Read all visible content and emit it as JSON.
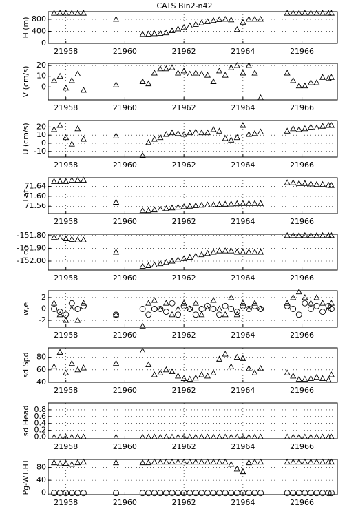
{
  "title": "CATS Bin2-n42",
  "chart_data": [
    {
      "type": "scatter",
      "ylabel": "H (m)",
      "xlim": [
        21957.4,
        21967.2
      ],
      "xticks": [
        21958,
        21960,
        21962,
        21964,
        21966
      ],
      "ylim": [
        0,
        1050
      ],
      "yticks": [
        0,
        400,
        800
      ],
      "grid": true,
      "x": [
        21957.6,
        21957.8,
        21958.0,
        21958.2,
        21958.4,
        21958.6,
        21959.7,
        21960.6,
        21960.8,
        21961.0,
        21961.2,
        21961.4,
        21961.6,
        21961.8,
        21962.0,
        21962.2,
        21962.4,
        21962.6,
        21962.8,
        21963.0,
        21963.2,
        21963.4,
        21963.6,
        21963.8,
        21964.0,
        21964.2,
        21964.4,
        21964.6,
        21965.5,
        21965.7,
        21965.9,
        21966.1,
        21966.3,
        21966.5,
        21966.7,
        21966.9,
        21967.0
      ],
      "series": [
        {
          "marker": "triangle",
          "color": "#000000",
          "values": [
            1000,
            1000,
            1000,
            1000,
            1000,
            1000,
            800,
            300,
            310,
            320,
            330,
            350,
            420,
            480,
            530,
            580,
            630,
            680,
            720,
            760,
            790,
            800,
            780,
            460,
            700,
            800,
            800,
            800,
            1000,
            1000,
            1000,
            1000,
            1000,
            1000,
            1000,
            1000,
            1000
          ]
        }
      ]
    },
    {
      "type": "scatter",
      "ylabel": "V (cm/s)",
      "xlim": [
        21957.4,
        21967.2
      ],
      "xticks": [
        21958,
        21960,
        21962,
        21964,
        21966
      ],
      "ylim": [
        -12,
        22
      ],
      "yticks": [
        0,
        10,
        20
      ],
      "grid": true,
      "x": [
        21957.6,
        21957.8,
        21958.0,
        21958.2,
        21958.4,
        21958.6,
        21959.7,
        21960.6,
        21960.8,
        21961.0,
        21961.2,
        21961.4,
        21961.6,
        21961.8,
        21962.0,
        21962.2,
        21962.4,
        21962.6,
        21962.8,
        21963.0,
        21963.2,
        21963.4,
        21963.6,
        21963.8,
        21964.0,
        21964.2,
        21964.4,
        21964.6,
        21965.5,
        21965.7,
        21965.9,
        21966.1,
        21966.3,
        21966.5,
        21966.7,
        21966.9,
        21967.0
      ],
      "series": [
        {
          "marker": "triangle",
          "color": "#000000",
          "values": [
            6,
            10,
            -1,
            6,
            12,
            -3,
            2,
            5,
            3,
            13,
            17,
            17,
            18,
            13,
            15,
            12,
            13,
            12,
            11,
            5,
            15,
            11,
            18,
            20,
            13,
            20,
            13,
            -10,
            13,
            6,
            1,
            1,
            4,
            4,
            9,
            8,
            9
          ]
        }
      ]
    },
    {
      "type": "scatter",
      "ylabel": "U (cm/s)",
      "xlim": [
        21957.4,
        21967.2
      ],
      "xticks": [
        21958,
        21960,
        21962,
        21964,
        21966
      ],
      "ylim": [
        -17,
        28
      ],
      "yticks": [
        -10,
        0,
        10,
        20
      ],
      "grid": true,
      "x": [
        21957.6,
        21957.8,
        21958.0,
        21958.2,
        21958.4,
        21958.6,
        21959.7,
        21960.6,
        21960.8,
        21961.0,
        21961.2,
        21961.4,
        21961.6,
        21961.8,
        21962.0,
        21962.2,
        21962.4,
        21962.6,
        21962.8,
        21963.0,
        21963.2,
        21963.4,
        21963.6,
        21963.8,
        21964.0,
        21964.2,
        21964.4,
        21964.6,
        21965.5,
        21965.7,
        21965.9,
        21966.1,
        21966.3,
        21966.5,
        21966.7,
        21966.9,
        21967.0
      ],
      "series": [
        {
          "marker": "triangle",
          "color": "#000000",
          "values": [
            17,
            22,
            7,
            -1,
            18,
            5,
            9,
            -15,
            1,
            5,
            7,
            11,
            13,
            12,
            11,
            13,
            14,
            13,
            13,
            17,
            15,
            6,
            4,
            7,
            22,
            11,
            12,
            14,
            15,
            18,
            17,
            18,
            20,
            19,
            21,
            22,
            22
          ]
        }
      ]
    },
    {
      "type": "scatter",
      "ylabel": "Lat",
      "xlim": [
        21957.4,
        21967.2
      ],
      "xticks": [
        21958,
        21960,
        21962,
        21964,
        21966
      ],
      "ylim": [
        71.53,
        71.675
      ],
      "yticks": [
        71.56,
        {
          "value": 71.6,
          "label": "71.60"
        },
        71.64
      ],
      "grid": true,
      "x": [
        21957.6,
        21957.8,
        21958.0,
        21958.2,
        21958.4,
        21958.6,
        21959.7,
        21960.6,
        21960.8,
        21961.0,
        21961.2,
        21961.4,
        21961.6,
        21961.8,
        21962.0,
        21962.2,
        21962.4,
        21962.6,
        21962.8,
        21963.0,
        21963.2,
        21963.4,
        21963.6,
        21963.8,
        21964.0,
        21964.2,
        21964.4,
        21964.6,
        21965.5,
        21965.7,
        21965.9,
        21966.1,
        21966.3,
        21966.5,
        21966.7,
        21966.9,
        21967.0
      ],
      "series": [
        {
          "marker": "triangle",
          "color": "#000000",
          "values": [
            71.66,
            71.66,
            71.66,
            71.665,
            71.665,
            71.665,
            71.576,
            71.542,
            71.542,
            71.545,
            71.548,
            71.55,
            71.553,
            71.556,
            71.558,
            71.56,
            71.562,
            71.564,
            71.565,
            71.566,
            71.567,
            71.568,
            71.569,
            71.57,
            71.571,
            71.571,
            71.571,
            71.571,
            71.655,
            71.655,
            71.652,
            71.652,
            71.65,
            71.648,
            71.648,
            71.645,
            71.644
          ]
        }
      ]
    },
    {
      "type": "scatter",
      "ylabel": "Lon",
      "xlim": [
        21957.4,
        21967.2
      ],
      "xticks": [
        21958,
        21960,
        21962,
        21964,
        21966
      ],
      "ylim": [
        -152.07,
        -151.79
      ],
      "yticks": [
        {
          "value": -152.0,
          "label": "-152.00"
        },
        {
          "value": -151.9,
          "label": "-151.90"
        },
        {
          "value": -151.8,
          "label": "-151.80"
        }
      ],
      "grid": true,
      "x": [
        21957.6,
        21957.8,
        21958.0,
        21958.2,
        21958.4,
        21958.6,
        21959.7,
        21960.6,
        21960.8,
        21961.0,
        21961.2,
        21961.4,
        21961.6,
        21961.8,
        21962.0,
        21962.2,
        21962.4,
        21962.6,
        21962.8,
        21963.0,
        21963.2,
        21963.4,
        21963.6,
        21963.8,
        21964.0,
        21964.2,
        21964.4,
        21964.6,
        21965.5,
        21965.7,
        21965.9,
        21966.1,
        21966.3,
        21966.5,
        21966.7,
        21966.9,
        21967.0
      ],
      "series": [
        {
          "marker": "triangle",
          "color": "#000000",
          "values": [
            -151.815,
            -151.82,
            -151.825,
            -151.83,
            -151.835,
            -151.835,
            -151.93,
            -152.04,
            -152.035,
            -152.03,
            -152.02,
            -152.01,
            -152.0,
            -151.99,
            -151.98,
            -151.97,
            -151.96,
            -151.95,
            -151.94,
            -151.93,
            -151.92,
            -151.92,
            -151.92,
            -151.93,
            -151.93,
            -151.93,
            -151.93,
            -151.93,
            -151.8,
            -151.8,
            -151.8,
            -151.8,
            -151.8,
            -151.8,
            -151.8,
            -151.8,
            -151.8
          ]
        }
      ]
    },
    {
      "type": "scatter",
      "ylabel": "w,e",
      "xlim": [
        21957.4,
        21967.2
      ],
      "xticks": [
        21958,
        21960,
        21962,
        21964,
        21966
      ],
      "ylim": [
        -3.2,
        3.2
      ],
      "yticks": [
        -2,
        0,
        2
      ],
      "grid": true,
      "x": [
        21957.6,
        21957.8,
        21958.0,
        21958.2,
        21958.4,
        21958.6,
        21959.7,
        21960.6,
        21960.8,
        21961.0,
        21961.2,
        21961.4,
        21961.6,
        21961.8,
        21962.0,
        21962.2,
        21962.4,
        21962.6,
        21962.8,
        21963.0,
        21963.2,
        21963.4,
        21963.6,
        21963.8,
        21964.0,
        21964.2,
        21964.4,
        21964.6,
        21965.5,
        21965.7,
        21965.9,
        21966.1,
        21966.3,
        21966.5,
        21966.7,
        21966.9,
        21967.0
      ],
      "series": [
        {
          "marker": "triangle",
          "color": "#000000",
          "values": [
            1,
            -1,
            -2,
            0,
            -2,
            1,
            -1,
            -3,
            1,
            1.5,
            0,
            1,
            -1,
            0,
            1,
            0,
            1,
            -1,
            0,
            1.5,
            0,
            -1,
            2,
            -1,
            1,
            0,
            1,
            0,
            1,
            2,
            3,
            2,
            1,
            2,
            1,
            0,
            1
          ]
        },
        {
          "marker": "circle",
          "color": "#000000",
          "values": [
            0,
            -0.5,
            -1,
            1,
            0,
            0.5,
            -1,
            0,
            -1,
            0,
            0,
            -0.5,
            1,
            -1,
            0.5,
            0,
            -1,
            0,
            0.5,
            0,
            -1,
            0.5,
            0,
            -0.5,
            0.5,
            0,
            0.5,
            0,
            0.5,
            0,
            -1,
            1,
            0,
            0.5,
            -0.5,
            0.5,
            0
          ]
        }
      ]
    },
    {
      "type": "scatter",
      "ylabel": "sd Spd",
      "xlim": [
        21957.4,
        21967.2
      ],
      "xticks": [
        21958,
        21960,
        21962,
        21964,
        21966
      ],
      "ylim": [
        40,
        95
      ],
      "yticks": [
        40,
        60,
        80
      ],
      "grid": true,
      "x": [
        21957.6,
        21957.8,
        21958.0,
        21958.2,
        21958.4,
        21958.6,
        21959.7,
        21960.6,
        21960.8,
        21961.0,
        21961.2,
        21961.4,
        21961.6,
        21961.8,
        21962.0,
        21962.2,
        21962.4,
        21962.6,
        21962.8,
        21963.0,
        21963.2,
        21963.4,
        21963.6,
        21963.8,
        21964.0,
        21964.2,
        21964.4,
        21964.6,
        21965.5,
        21965.7,
        21965.9,
        21966.1,
        21966.3,
        21966.5,
        21966.7,
        21966.9,
        21967.0
      ],
      "series": [
        {
          "marker": "triangle",
          "color": "#000000",
          "values": [
            65,
            88,
            55,
            70,
            60,
            63,
            70,
            90,
            68,
            52,
            55,
            60,
            57,
            50,
            46,
            45,
            47,
            52,
            50,
            55,
            77,
            85,
            65,
            80,
            78,
            62,
            55,
            62,
            55,
            50,
            45,
            45,
            46,
            48,
            46,
            44,
            52
          ]
        }
      ]
    },
    {
      "type": "scatter",
      "ylabel": "sd Head",
      "xlim": [
        21957.4,
        21967.2
      ],
      "xticks": [
        21958,
        21960,
        21962,
        21964,
        21966
      ],
      "ylim": [
        -0.05,
        1.0
      ],
      "yticks": [
        {
          "value": 0,
          "label": "0.0"
        },
        0.2,
        0.4,
        0.6,
        0.8
      ],
      "grid": true,
      "x": [
        21957.6,
        21957.8,
        21958.0,
        21958.2,
        21958.4,
        21958.6,
        21959.7,
        21960.6,
        21960.8,
        21961.0,
        21961.2,
        21961.4,
        21961.6,
        21961.8,
        21962.0,
        21962.2,
        21962.4,
        21962.6,
        21962.8,
        21963.0,
        21963.2,
        21963.4,
        21963.6,
        21963.8,
        21964.0,
        21964.2,
        21964.4,
        21964.6,
        21965.5,
        21965.7,
        21965.9,
        21966.1,
        21966.3,
        21966.5,
        21966.7,
        21966.9,
        21967.0
      ],
      "series": [
        {
          "marker": "triangle",
          "color": "#000000",
          "values": [
            0,
            0,
            0,
            0,
            0,
            0,
            0,
            0,
            0,
            0,
            0,
            0,
            0,
            0,
            0,
            0,
            0,
            0,
            0,
            0,
            0,
            0,
            0,
            0,
            0,
            0,
            0,
            0,
            0,
            0,
            0,
            0,
            0,
            0,
            0,
            0,
            0
          ]
        }
      ]
    },
    {
      "type": "scatter",
      "ylabel": "Pg-WT.HT",
      "xlim": [
        21957.4,
        21967.2
      ],
      "xticks": [
        21958,
        21960,
        21962,
        21964,
        21966
      ],
      "ylim": [
        -5,
        105
      ],
      "yticks": [
        0,
        40,
        80
      ],
      "grid": true,
      "x": [
        21957.6,
        21957.8,
        21958.0,
        21958.2,
        21958.4,
        21958.6,
        21959.7,
        21960.6,
        21960.8,
        21961.0,
        21961.2,
        21961.4,
        21961.6,
        21961.8,
        21962.0,
        21962.2,
        21962.4,
        21962.6,
        21962.8,
        21963.0,
        21963.2,
        21963.4,
        21963.6,
        21963.8,
        21964.0,
        21964.2,
        21964.4,
        21964.6,
        21965.5,
        21965.7,
        21965.9,
        21966.1,
        21966.3,
        21966.5,
        21966.7,
        21966.9,
        21967.0
      ],
      "series": [
        {
          "marker": "triangle",
          "color": "#000000",
          "values": [
            95,
            92,
            93,
            90,
            95,
            97,
            95,
            95,
            95,
            97,
            97,
            97,
            97,
            97,
            97,
            97,
            97,
            97,
            97,
            97,
            97,
            97,
            90,
            75,
            67,
            95,
            97,
            97,
            97,
            97,
            97,
            97,
            97,
            97,
            97,
            97,
            97
          ]
        },
        {
          "marker": "circle",
          "color": "#000000",
          "values": [
            0,
            0,
            0,
            0,
            0,
            0,
            0,
            0,
            0,
            0,
            0,
            0,
            0,
            0,
            0,
            0,
            0,
            0,
            0,
            0,
            0,
            0,
            0,
            0,
            0,
            0,
            0,
            0,
            0,
            0,
            0,
            0,
            0,
            0,
            0,
            0,
            0
          ]
        }
      ]
    }
  ]
}
